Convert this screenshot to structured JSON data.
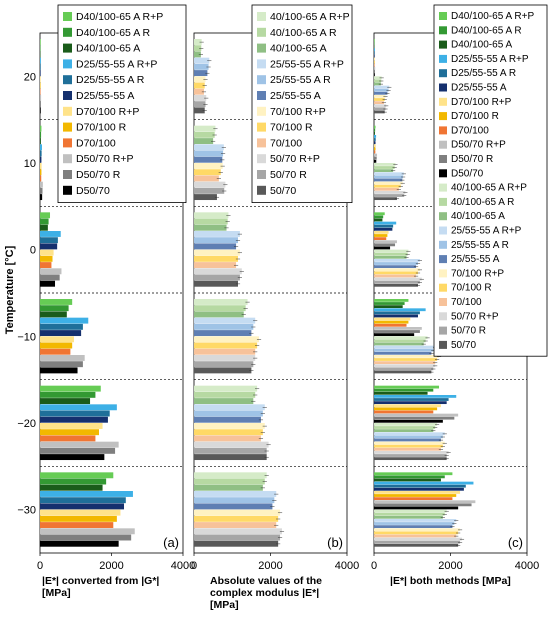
{
  "figure": {
    "ylabel": "Temperature [°C]",
    "temperatures": [
      20,
      10,
      0,
      -10,
      -20,
      -30
    ],
    "temperature_labels": [
      "20",
      "10",
      "0",
      "−10",
      "−20",
      "−30"
    ],
    "x_ticks": [
      "0",
      "2000",
      "4000"
    ],
    "x_range": [
      0,
      4000
    ]
  },
  "chart_data": [
    {
      "type": "bar",
      "orientation": "horizontal",
      "panel_label": "(a)",
      "xlabel_lines": [
        "|E*| converted from |G*|",
        "[MPa]"
      ],
      "xlim": [
        0,
        4000
      ],
      "ylabel": "Temperature [°C]",
      "categories": [
        "20",
        "10",
        "0",
        "-10",
        "-20",
        "-30"
      ],
      "legend_position": "top-right",
      "series": [
        {
          "name": "D40/100-65 A R+P",
          "color": "#66cc55",
          "values": [
            20,
            40,
            280,
            900,
            1700,
            2050
          ]
        },
        {
          "name": "D40/100-65 A R",
          "color": "#339933",
          "values": [
            15,
            30,
            240,
            800,
            1550,
            1850
          ]
        },
        {
          "name": "D40/100-65 A",
          "color": "#1a5c1a",
          "values": [
            12,
            25,
            220,
            750,
            1400,
            1750
          ]
        },
        {
          "name": "D25/55-55 A R+P",
          "color": "#3db0e6",
          "values": [
            25,
            55,
            580,
            1350,
            2150,
            2600
          ]
        },
        {
          "name": "D25/55-55 A R",
          "color": "#1f6f99",
          "values": [
            20,
            45,
            500,
            1200,
            1950,
            2400
          ]
        },
        {
          "name": "D25/55-55 A",
          "color": "#15306e",
          "values": [
            18,
            40,
            480,
            1150,
            1900,
            2350
          ]
        },
        {
          "name": "D70/100 R+P",
          "color": "#ffe38a",
          "values": [
            18,
            45,
            380,
            950,
            1750,
            2250
          ]
        },
        {
          "name": "D70/100 R",
          "color": "#f2b800",
          "values": [
            15,
            40,
            350,
            900,
            1650,
            2150
          ]
        },
        {
          "name": "D70/100",
          "color": "#f07533",
          "values": [
            14,
            35,
            320,
            850,
            1550,
            2050
          ]
        },
        {
          "name": "D50/70 R+P",
          "color": "#c0c0c0",
          "values": [
            30,
            80,
            600,
            1250,
            2200,
            2650
          ]
        },
        {
          "name": "D50/70 R",
          "color": "#7f7f7f",
          "values": [
            25,
            70,
            550,
            1200,
            2100,
            2550
          ]
        },
        {
          "name": "D50/70",
          "color": "#000000",
          "values": [
            22,
            60,
            420,
            1050,
            1800,
            2200
          ]
        }
      ]
    },
    {
      "type": "bar",
      "orientation": "horizontal",
      "panel_label": "(b)",
      "xlabel_lines": [
        "Absolute values of the",
        "complex modulus |E*|",
        "[MPa]"
      ],
      "xlim": [
        0,
        4000
      ],
      "categories": [
        "20",
        "10",
        "0",
        "-10",
        "-20",
        "-30"
      ],
      "legend_position": "top-right",
      "series": [
        {
          "name": "40/100-65 A R+P",
          "color": "#d5ebc8",
          "values": [
            200,
            560,
            900,
            1400,
            1650,
            1900
          ]
        },
        {
          "name": "40/100-65 A R",
          "color": "#b6d9a2",
          "values": [
            190,
            540,
            880,
            1350,
            1600,
            1850
          ]
        },
        {
          "name": "40/100-65 A",
          "color": "#8fbf84",
          "values": [
            180,
            500,
            850,
            1300,
            1550,
            1800
          ]
        },
        {
          "name": "25/55-55 A R+P",
          "color": "#c5dcf2",
          "values": [
            400,
            780,
            1200,
            1600,
            1850,
            2150
          ]
        },
        {
          "name": "25/55-55 A R",
          "color": "#9fc3e6",
          "values": [
            380,
            760,
            1150,
            1550,
            1800,
            2100
          ]
        },
        {
          "name": "25/55-55 A",
          "color": "#5f7fb3",
          "values": [
            350,
            740,
            1100,
            1500,
            1750,
            2050
          ]
        },
        {
          "name": "70/100 R+P",
          "color": "#fff2c2",
          "values": [
            300,
            750,
            1200,
            1700,
            1850,
            2250
          ]
        },
        {
          "name": "70/100 R",
          "color": "#ffd966",
          "values": [
            280,
            700,
            1150,
            1650,
            1800,
            2200
          ]
        },
        {
          "name": "70/100",
          "color": "#f7c29a",
          "values": [
            260,
            650,
            1100,
            1600,
            1750,
            2150
          ]
        },
        {
          "name": "50/70 R+P",
          "color": "#d9d9d9",
          "values": [
            320,
            820,
            1250,
            1600,
            1950,
            2300
          ]
        },
        {
          "name": "50/70 R",
          "color": "#a6a6a6",
          "values": [
            300,
            790,
            1200,
            1550,
            1900,
            2250
          ]
        },
        {
          "name": "50/70",
          "color": "#595959",
          "values": [
            280,
            600,
            1150,
            1500,
            1900,
            2200
          ]
        }
      ]
    },
    {
      "type": "bar",
      "orientation": "horizontal",
      "panel_label": "(c)",
      "xlabel_lines": [
        "|E*| both methods [MPa]"
      ],
      "xlim": [
        0,
        4000
      ],
      "categories": [
        "20",
        "10",
        "0",
        "-10",
        "-20",
        "-30"
      ],
      "legend_position": "top-right",
      "series": [
        {
          "name": "D40/100-65 A R+P",
          "color": "#66cc55",
          "values": [
            20,
            40,
            280,
            900,
            1700,
            2050
          ]
        },
        {
          "name": "D40/100-65 A R",
          "color": "#339933",
          "values": [
            15,
            30,
            240,
            800,
            1550,
            1850
          ]
        },
        {
          "name": "D40/100-65 A",
          "color": "#1a5c1a",
          "values": [
            12,
            25,
            220,
            750,
            1400,
            1750
          ]
        },
        {
          "name": "D25/55-55 A R+P",
          "color": "#3db0e6",
          "values": [
            25,
            55,
            580,
            1350,
            2150,
            2600
          ]
        },
        {
          "name": "D25/55-55 A R",
          "color": "#1f6f99",
          "values": [
            20,
            45,
            500,
            1200,
            1950,
            2400
          ]
        },
        {
          "name": "D25/55-55 A",
          "color": "#15306e",
          "values": [
            18,
            40,
            480,
            1150,
            1900,
            2350
          ]
        },
        {
          "name": "D70/100 R+P",
          "color": "#ffe38a",
          "values": [
            18,
            45,
            380,
            950,
            1750,
            2250
          ]
        },
        {
          "name": "D70/100 R",
          "color": "#f2b800",
          "values": [
            15,
            40,
            350,
            900,
            1650,
            2150
          ]
        },
        {
          "name": "D70/100",
          "color": "#f07533",
          "values": [
            14,
            35,
            320,
            850,
            1550,
            2050
          ]
        },
        {
          "name": "D50/70 R+P",
          "color": "#c0c0c0",
          "values": [
            30,
            80,
            600,
            1250,
            2200,
            2650
          ]
        },
        {
          "name": "D50/70 R",
          "color": "#7f7f7f",
          "values": [
            25,
            70,
            550,
            1200,
            2100,
            2550
          ]
        },
        {
          "name": "D50/70",
          "color": "#000000",
          "values": [
            22,
            60,
            420,
            1050,
            1800,
            2200
          ]
        },
        {
          "name": "40/100-65 A R+P",
          "color": "#d5ebc8",
          "values": [
            200,
            560,
            900,
            1400,
            1650,
            1900
          ]
        },
        {
          "name": "40/100-65 A R",
          "color": "#b6d9a2",
          "values": [
            190,
            540,
            880,
            1350,
            1600,
            1850
          ]
        },
        {
          "name": "40/100-65 A",
          "color": "#8fbf84",
          "values": [
            180,
            500,
            850,
            1300,
            1550,
            1800
          ]
        },
        {
          "name": "25/55-55 A R+P",
          "color": "#c5dcf2",
          "values": [
            400,
            780,
            1200,
            1600,
            1850,
            2150
          ]
        },
        {
          "name": "25/55-55 A R",
          "color": "#9fc3e6",
          "values": [
            380,
            760,
            1150,
            1550,
            1800,
            2100
          ]
        },
        {
          "name": "25/55-55 A",
          "color": "#5f7fb3",
          "values": [
            350,
            740,
            1100,
            1500,
            1750,
            2050
          ]
        },
        {
          "name": "70/100 R+P",
          "color": "#fff2c2",
          "values": [
            300,
            750,
            1200,
            1700,
            1850,
            2250
          ]
        },
        {
          "name": "70/100 R",
          "color": "#ffd966",
          "values": [
            280,
            700,
            1150,
            1650,
            1800,
            2200
          ]
        },
        {
          "name": "70/100",
          "color": "#f7c29a",
          "values": [
            260,
            650,
            1100,
            1600,
            1750,
            2150
          ]
        },
        {
          "name": "50/70 R+P",
          "color": "#d9d9d9",
          "values": [
            320,
            820,
            1250,
            1600,
            1950,
            2300
          ]
        },
        {
          "name": "50/70 R",
          "color": "#a6a6a6",
          "values": [
            300,
            790,
            1200,
            1550,
            1900,
            2250
          ]
        },
        {
          "name": "50/70",
          "color": "#595959",
          "values": [
            280,
            600,
            1150,
            1500,
            1900,
            2200
          ]
        }
      ]
    }
  ]
}
